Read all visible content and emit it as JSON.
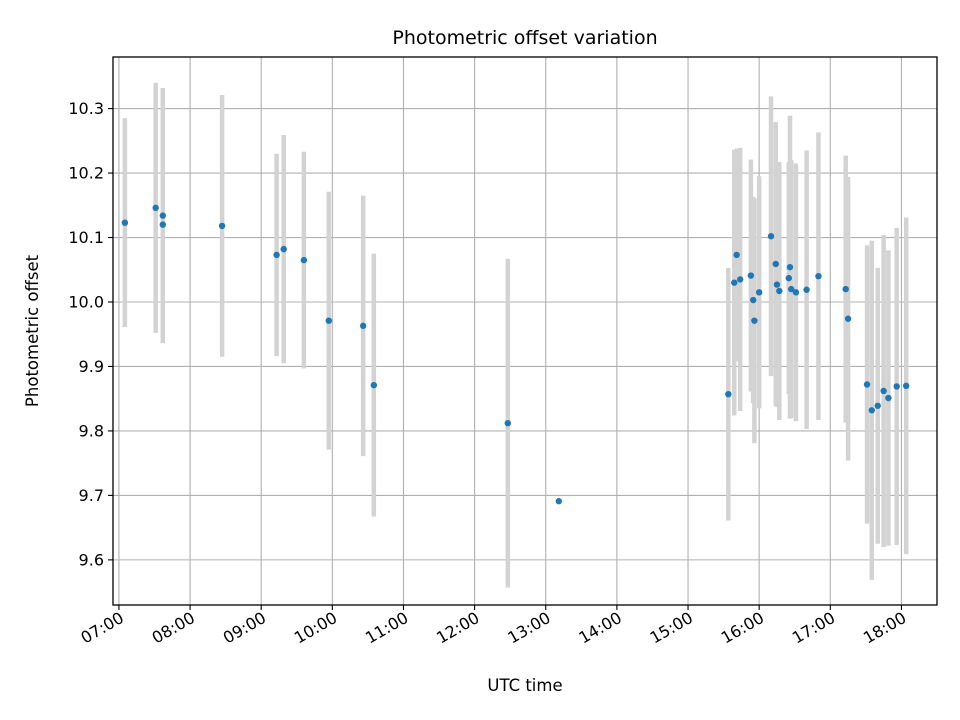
{
  "chart_data": {
    "type": "scatter",
    "title": "Photometric offset variation",
    "xlabel": "UTC time",
    "ylabel": "Photometric offset",
    "xlim": [
      "06:55",
      "18:30"
    ],
    "ylim": [
      9.53,
      10.38
    ],
    "x_ticks": [
      "07:00",
      "08:00",
      "09:00",
      "10:00",
      "11:00",
      "12:00",
      "13:00",
      "14:00",
      "15:00",
      "16:00",
      "17:00",
      "18:00"
    ],
    "y_ticks": [
      9.6,
      9.7,
      9.8,
      9.9,
      10.0,
      10.1,
      10.2,
      10.3
    ],
    "grid": true,
    "colors": {
      "points": "#1f77b4",
      "errorbars": "#d3d3d3",
      "grid": "#b0b0b0"
    },
    "series": [
      {
        "points": [
          {
            "x": "07:05",
            "y": 10.123,
            "err": 0.162
          },
          {
            "x": "07:31",
            "y": 10.146,
            "err": 0.194
          },
          {
            "x": "07:37",
            "y": 10.134,
            "err": 0.198
          },
          {
            "x": "07:37",
            "y": 10.12,
            "err": 0.0
          },
          {
            "x": "08:27",
            "y": 10.118,
            "err": 0.203
          },
          {
            "x": "09:13",
            "y": 10.073,
            "err": 0.157
          },
          {
            "x": "09:19",
            "y": 10.082,
            "err": 0.177
          },
          {
            "x": "09:36",
            "y": 10.065,
            "err": 0.168
          },
          {
            "x": "09:57",
            "y": 9.971,
            "err": 0.2
          },
          {
            "x": "10:26",
            "y": 9.963,
            "err": 0.202
          },
          {
            "x": "10:35",
            "y": 9.871,
            "err": 0.204
          },
          {
            "x": "12:28",
            "y": 9.812,
            "err": 0.255
          },
          {
            "x": "13:11",
            "y": 9.691,
            "err": 0.0
          },
          {
            "x": "15:34",
            "y": 9.857,
            "err": 0.196
          },
          {
            "x": "15:39",
            "y": 10.03,
            "err": 0.206
          },
          {
            "x": "15:41",
            "y": 10.073,
            "err": 0.165
          },
          {
            "x": "15:44",
            "y": 10.035,
            "err": 0.204
          },
          {
            "x": "15:53",
            "y": 10.041,
            "err": 0.18
          },
          {
            "x": "15:55",
            "y": 10.003,
            "err": 0.16
          },
          {
            "x": "15:56",
            "y": 9.971,
            "err": 0.19
          },
          {
            "x": "16:00",
            "y": 10.015,
            "err": 0.18
          },
          {
            "x": "16:10",
            "y": 10.102,
            "err": 0.217
          },
          {
            "x": "16:14",
            "y": 10.059,
            "err": 0.22
          },
          {
            "x": "16:15",
            "y": 10.027,
            "err": 0.19
          },
          {
            "x": "16:17",
            "y": 10.017,
            "err": 0.2
          },
          {
            "x": "16:25",
            "y": 10.037,
            "err": 0.18
          },
          {
            "x": "16:26",
            "y": 10.054,
            "err": 0.235
          },
          {
            "x": "16:27",
            "y": 10.02,
            "err": 0.2
          },
          {
            "x": "16:31",
            "y": 10.015,
            "err": 0.2
          },
          {
            "x": "16:40",
            "y": 10.019,
            "err": 0.216
          },
          {
            "x": "16:50",
            "y": 10.04,
            "err": 0.223
          },
          {
            "x": "17:13",
            "y": 10.02,
            "err": 0.207
          },
          {
            "x": "17:15",
            "y": 9.974,
            "err": 0.22
          },
          {
            "x": "17:31",
            "y": 9.872,
            "err": 0.216
          },
          {
            "x": "17:35",
            "y": 9.832,
            "err": 0.263
          },
          {
            "x": "17:40",
            "y": 9.839,
            "err": 0.214
          },
          {
            "x": "17:45",
            "y": 9.862,
            "err": 0.242
          },
          {
            "x": "17:49",
            "y": 9.851,
            "err": 0.229
          },
          {
            "x": "17:56",
            "y": 9.869,
            "err": 0.246
          },
          {
            "x": "18:04",
            "y": 9.87,
            "err": 0.261
          }
        ]
      }
    ]
  }
}
